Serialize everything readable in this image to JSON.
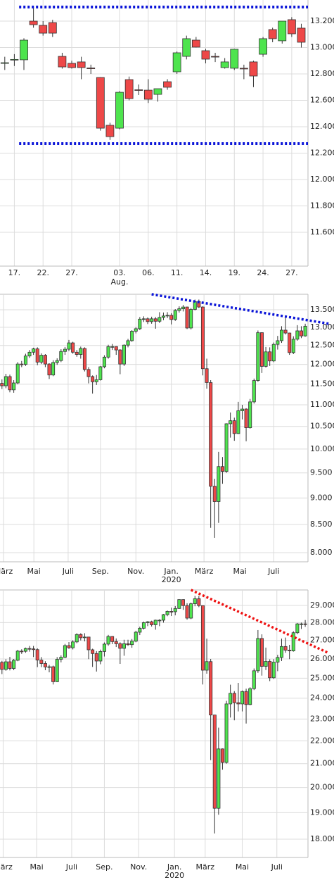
{
  "chart_data": [
    {
      "type": "candlestick",
      "up_color": "#4ee44e",
      "down_color": "#ee4848",
      "grid": true,
      "log_scale": false,
      "xlim": [
        -0.5,
        31.7
      ],
      "ylim": [
        11344,
        13360
      ],
      "yticks": [
        {
          "value": 13200,
          "label": "13.200"
        },
        {
          "value": 13000,
          "label": "13.000"
        },
        {
          "value": 12800,
          "label": "12.800"
        },
        {
          "value": 12600,
          "label": "12.600"
        },
        {
          "value": 12400,
          "label": "12.400"
        },
        {
          "value": 12200,
          "label": "12.200"
        },
        {
          "value": 12000,
          "label": "12.000"
        },
        {
          "value": 11800,
          "label": "11.800"
        },
        {
          "value": 11600,
          "label": "11.600"
        }
      ],
      "xticks": [
        {
          "value": 1,
          "label": "17."
        },
        {
          "value": 4,
          "label": "22."
        },
        {
          "value": 7,
          "label": "27."
        },
        {
          "value": 12,
          "label": "03."
        },
        {
          "value": 15,
          "label": "06."
        },
        {
          "value": 18,
          "label": "11."
        },
        {
          "value": 21,
          "label": "14."
        },
        {
          "value": 24,
          "label": "19."
        },
        {
          "value": 27,
          "label": "24."
        },
        {
          "value": 30,
          "label": "27."
        }
      ],
      "x_sublabels": [
        {
          "value": 12,
          "label": "Aug."
        }
      ],
      "open": [
        12880,
        12905,
        12907,
        13200,
        13168,
        13189,
        12933,
        12880,
        12891,
        12845,
        12773,
        12411,
        12389,
        12757,
        12680,
        12677,
        12645,
        12741,
        12816,
        12933,
        13056,
        12976,
        12933,
        12848,
        12843,
        12843,
        12891,
        12949,
        13136,
        13051,
        13211,
        13147
      ],
      "high": [
        12930,
        12950,
        13070,
        13307,
        13200,
        13210,
        12960,
        12900,
        12930,
        12870,
        12775,
        12430,
        12670,
        12780,
        12720,
        12760,
        12680,
        12760,
        12970,
        13090,
        13080,
        12990,
        12960,
        12920,
        12990,
        12870,
        12900,
        13080,
        13150,
        13200,
        13230,
        13180
      ],
      "low": [
        12830,
        12860,
        12830,
        13150,
        13090,
        13080,
        12840,
        12840,
        12760,
        12800,
        12370,
        12300,
        12380,
        12600,
        12640,
        12580,
        12590,
        12680,
        12800,
        12910,
        13000,
        12880,
        12890,
        12840,
        12830,
        12760,
        12700,
        12930,
        13040,
        13030,
        13080,
        13000
      ],
      "close": [
        12885,
        12910,
        13056,
        13173,
        13109,
        13109,
        12853,
        12848,
        12848,
        12843,
        12389,
        12325,
        12661,
        12613,
        12677,
        12608,
        12688,
        12699,
        12960,
        13067,
        13003,
        12912,
        12930,
        12891,
        12987,
        12840,
        12784,
        13067,
        13067,
        13200,
        13104,
        13040
      ],
      "trend_lines": [
        {
          "color": "#0a14d8",
          "x": [
            1.5,
            31.7
          ],
          "y": [
            13307,
            13307
          ]
        },
        {
          "color": "#0a14d8",
          "x": [
            1.5,
            31.7
          ],
          "y": [
            12272,
            12272
          ]
        }
      ]
    },
    {
      "type": "candlestick",
      "up_color": "#4ee44e",
      "down_color": "#ee4848",
      "grid": true,
      "log_scale": true,
      "xlim": [
        -0.5,
        77.7
      ],
      "ylim": [
        7844,
        13958
      ],
      "yticks": [
        {
          "value": 13500,
          "label": "13.500"
        },
        {
          "value": 13000,
          "label": "13.000"
        },
        {
          "value": 12500,
          "label": "12.500"
        },
        {
          "value": 12000,
          "label": "12.000"
        },
        {
          "value": 11500,
          "label": "11.500"
        },
        {
          "value": 11000,
          "label": "11.000"
        },
        {
          "value": 10500,
          "label": "10.500"
        },
        {
          "value": 10000,
          "label": "10.000"
        },
        {
          "value": 9500,
          "label": "9.500"
        },
        {
          "value": 9000,
          "label": "9.000"
        },
        {
          "value": 8500,
          "label": "8.500"
        },
        {
          "value": 8000,
          "label": "8.000"
        }
      ],
      "xticks": [
        {
          "value": 0.4,
          "label": "März"
        },
        {
          "value": 8.1,
          "label": "Mai"
        },
        {
          "value": 16.8,
          "label": "Juli"
        },
        {
          "value": 25,
          "label": "Sep."
        },
        {
          "value": 34,
          "label": "Nov."
        },
        {
          "value": 43,
          "label": "Jan."
        },
        {
          "value": 51.3,
          "label": "März"
        },
        {
          "value": 60.4,
          "label": "Mai"
        },
        {
          "value": 69,
          "label": "Juli"
        }
      ],
      "x_sublabels": [
        {
          "value": 43,
          "label": "2020"
        }
      ],
      "open": [
        11520,
        11460,
        11690,
        11360,
        11530,
        12010,
        12000,
        12220,
        12320,
        12410,
        12060,
        12240,
        12010,
        11730,
        12050,
        12100,
        12340,
        12400,
        12570,
        12320,
        12260,
        12420,
        11870,
        11690,
        11560,
        11610,
        11940,
        12190,
        12470,
        12470,
        12380,
        12010,
        12510,
        12630,
        12890,
        12960,
        13230,
        13240,
        13160,
        13240,
        13170,
        13280,
        13320,
        13340,
        13220,
        13480,
        13530,
        13580,
        12980,
        13510,
        13740,
        13580,
        11890,
        11540,
        9230,
        8930,
        9630,
        9530,
        10560,
        10630,
        10340,
        10860,
        10900,
        10470,
        11070,
        11590,
        12850,
        11950,
        12330,
        12090,
        12530,
        12630,
        12920,
        12840,
        12310,
        12670,
        12900,
        12760
      ],
      "high": [
        11620,
        11760,
        11740,
        11600,
        12060,
        12090,
        12280,
        12380,
        12440,
        12450,
        12290,
        12270,
        12030,
        12110,
        12160,
        12400,
        12460,
        12650,
        12600,
        12380,
        12470,
        12450,
        11930,
        11720,
        11730,
        11960,
        12240,
        12520,
        12540,
        12480,
        12400,
        12530,
        12680,
        12920,
        13000,
        13290,
        13310,
        13280,
        13300,
        13290,
        13430,
        13420,
        13430,
        13400,
        13520,
        13600,
        13640,
        13590,
        13550,
        13800,
        13800,
        13600,
        12150,
        11600,
        9380,
        9940,
        9830,
        10570,
        10820,
        10700,
        11070,
        11000,
        10920,
        11140,
        11640,
        12910,
        12860,
        12460,
        12450,
        12580,
        12760,
        13030,
        13310,
        12850,
        12750,
        13060,
        13030,
        13100
      ],
      "low": [
        11380,
        11400,
        11300,
        11290,
        11500,
        11930,
        11960,
        12170,
        12250,
        11980,
        12010,
        11930,
        11630,
        11700,
        11990,
        12060,
        12250,
        12350,
        12280,
        12200,
        12150,
        11820,
        11520,
        11270,
        11480,
        11590,
        11900,
        12150,
        12380,
        12250,
        11750,
        11960,
        12450,
        12600,
        12830,
        12920,
        13150,
        13090,
        13100,
        12960,
        13120,
        13200,
        13260,
        13080,
        13180,
        13420,
        13450,
        12950,
        12940,
        13480,
        13550,
        11720,
        11390,
        8440,
        8260,
        8530,
        9280,
        9500,
        10250,
        10180,
        10330,
        10660,
        10170,
        10450,
        11030,
        11560,
        11780,
        11920,
        11960,
        12060,
        12390,
        12570,
        12800,
        12250,
        12270,
        12630,
        12700,
        12740
      ],
      "close": [
        11460,
        11690,
        11360,
        11530,
        12010,
        12000,
        12220,
        12320,
        12410,
        12060,
        12240,
        12010,
        11730,
        12050,
        12100,
        12340,
        12400,
        12570,
        12320,
        12260,
        12420,
        11870,
        11690,
        11560,
        11610,
        11940,
        12190,
        12470,
        12470,
        12380,
        12010,
        12510,
        12630,
        12890,
        12960,
        13230,
        13240,
        13160,
        13240,
        13170,
        13280,
        13320,
        13340,
        13220,
        13480,
        13530,
        13580,
        12980,
        13510,
        13740,
        13580,
        11890,
        11540,
        9230,
        8930,
        9630,
        9530,
        10560,
        10630,
        10340,
        10860,
        10900,
        10470,
        11070,
        11590,
        12850,
        11950,
        12330,
        12090,
        12530,
        12630,
        12920,
        12840,
        12310,
        12670,
        12900,
        12760,
        13030
      ],
      "trend_lines": [
        {
          "color": "#0a14d8",
          "x": [
            38,
            83
          ],
          "y": [
            13958,
            13100
          ]
        }
      ]
    },
    {
      "type": "candlestick",
      "up_color": "#4ee44e",
      "down_color": "#ee4848",
      "grid": true,
      "log_scale": true,
      "xlim": [
        -0.5,
        77.7
      ],
      "ylim": [
        17340,
        29931
      ],
      "yticks": [
        {
          "value": 29000,
          "label": "29.000"
        },
        {
          "value": 28000,
          "label": "28.000"
        },
        {
          "value": 27000,
          "label": "27.000"
        },
        {
          "value": 26000,
          "label": "26.000"
        },
        {
          "value": 25000,
          "label": "25.000"
        },
        {
          "value": 24000,
          "label": "24.000"
        },
        {
          "value": 23000,
          "label": "23.000"
        },
        {
          "value": 22000,
          "label": "22.000"
        },
        {
          "value": 21000,
          "label": "21.000"
        },
        {
          "value": 20000,
          "label": "20.000"
        },
        {
          "value": 19000,
          "label": "19.000"
        },
        {
          "value": 18000,
          "label": "18.000"
        }
      ],
      "xticks": [
        {
          "value": 0.3,
          "label": "März"
        },
        {
          "value": 8.8,
          "label": "Mai"
        },
        {
          "value": 17.7,
          "label": "Juli"
        },
        {
          "value": 26,
          "label": "Sep."
        },
        {
          "value": 34.7,
          "label": "Nov."
        },
        {
          "value": 43.8,
          "label": "Jan."
        },
        {
          "value": 51.6,
          "label": "März"
        },
        {
          "value": 61,
          "label": "Mai"
        },
        {
          "value": 69.8,
          "label": "Juli"
        }
      ],
      "x_sublabels": [
        {
          "value": 43.8,
          "label": "2020"
        }
      ],
      "open": [
        25820,
        25450,
        25850,
        25500,
        25930,
        26420,
        26410,
        26560,
        26540,
        26500,
        25940,
        25760,
        25580,
        25590,
        24820,
        25980,
        26090,
        26720,
        26600,
        26920,
        27330,
        27150,
        27190,
        26490,
        26290,
        25890,
        26400,
        26800,
        27220,
        26940,
        26820,
        26570,
        26820,
        26770,
        26960,
        27460,
        27680,
        28000,
        28050,
        27880,
        28140,
        28140,
        28460,
        28650,
        28630,
        28820,
        29350,
        28990,
        28260,
        29100,
        29400,
        28990,
        25410,
        25860,
        23190,
        19170,
        21640,
        21050,
        23720,
        24240,
        23780,
        23720,
        24330,
        23690,
        24470,
        25380,
        27110,
        25610,
        25870,
        25020,
        25830,
        26080,
        26670,
        26470,
        26430,
        27430,
        27930,
        27930
      ],
      "high": [
        25900,
        25990,
        26110,
        26000,
        26490,
        26520,
        26610,
        26700,
        26700,
        26570,
        26100,
        25880,
        25690,
        25650,
        26100,
        26190,
        26810,
        26910,
        27010,
        27400,
        27400,
        27400,
        27200,
        26550,
        26420,
        26500,
        26890,
        27310,
        27240,
        27110,
        26900,
        27040,
        27040,
        27080,
        27540,
        27770,
        28060,
        28090,
        28110,
        28170,
        28200,
        28500,
        28700,
        28870,
        28960,
        29370,
        29370,
        29130,
        29170,
        29570,
        29570,
        29000,
        27100,
        26000,
        23200,
        22600,
        21660,
        23870,
        24670,
        24350,
        24760,
        24380,
        24470,
        24540,
        25500,
        27580,
        27340,
        26610,
        25980,
        25990,
        26220,
        27100,
        27160,
        26760,
        27510,
        27980,
        28000,
        28150
      ],
      "low": [
        25210,
        25380,
        25400,
        25410,
        25880,
        26270,
        26330,
        26390,
        26100,
        25570,
        25570,
        25410,
        25300,
        24680,
        24800,
        25820,
        26040,
        26540,
        26510,
        26850,
        27000,
        26950,
        25990,
        25580,
        25340,
        25720,
        26130,
        26710,
        26800,
        26640,
        25740,
        26170,
        26700,
        26600,
        26900,
        27300,
        27610,
        27800,
        27780,
        27600,
        27800,
        28000,
        28370,
        28380,
        28420,
        28800,
        28740,
        28170,
        28200,
        28950,
        28900,
        24680,
        25230,
        21150,
        18210,
        18920,
        20740,
        21000,
        23070,
        22940,
        23360,
        23360,
        22790,
        23660,
        24400,
        25270,
        25130,
        25420,
        24850,
        24960,
        25360,
        25890,
        26330,
        25990,
        26390,
        27350,
        27640,
        27760
      ],
      "close": [
        25450,
        25850,
        25500,
        25930,
        26420,
        26410,
        26560,
        26540,
        26500,
        25940,
        25760,
        25580,
        25590,
        24820,
        25980,
        26090,
        26720,
        26600,
        26920,
        27330,
        27150,
        27190,
        26490,
        26290,
        25890,
        26400,
        26800,
        27220,
        26940,
        26820,
        26570,
        26820,
        26770,
        26960,
        27460,
        27680,
        28000,
        28050,
        27880,
        28140,
        28140,
        28460,
        28650,
        28630,
        28820,
        29350,
        28990,
        28260,
        29100,
        29400,
        28990,
        25410,
        25860,
        23190,
        19170,
        21640,
        21050,
        23720,
        24240,
        23780,
        23720,
        24330,
        23690,
        24470,
        25380,
        27110,
        25610,
        25870,
        25020,
        25830,
        26080,
        26670,
        26470,
        26430,
        27430,
        27930,
        27930,
        27900
      ],
      "trend_lines": [
        {
          "color": "#ee1111",
          "x": [
            48,
            82.7
          ],
          "y": [
            29931,
            26340
          ]
        }
      ]
    }
  ]
}
